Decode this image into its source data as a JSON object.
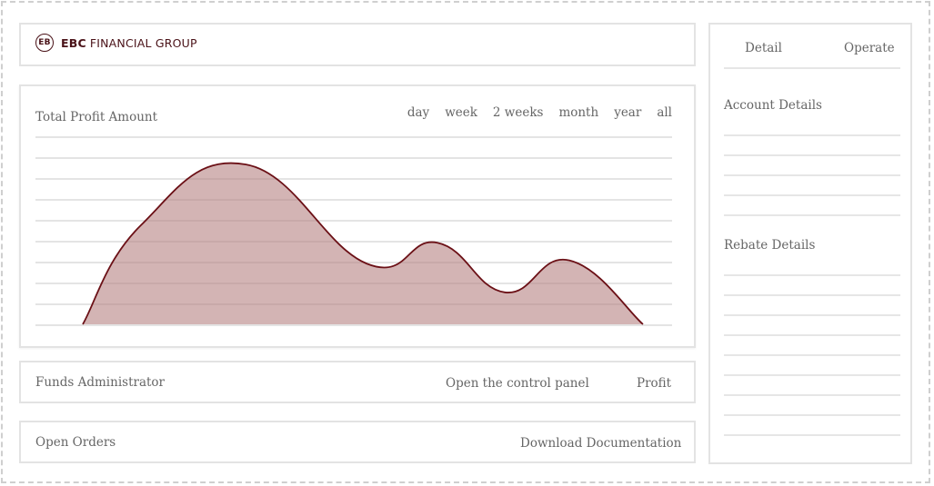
{
  "logo": {
    "brand": "EBC",
    "name": "FINANCIAL GROUP",
    "mark": "EB"
  },
  "chart": {
    "title": "Total Profit Amount",
    "periods": [
      "day",
      "week",
      "2 weeks",
      "month",
      "year",
      "all"
    ]
  },
  "chart_data": {
    "type": "area",
    "title": "Total Profit Amount",
    "series": [
      {
        "values": [
          0,
          0.62,
          1.0,
          0.38,
          0.51,
          0.2,
          0.4,
          0.0
        ]
      }
    ],
    "grid": true,
    "fill_color": "#d1b0b0",
    "line_color": "#6b1016"
  },
  "funds": {
    "label": "Funds Administrator",
    "control": "Open the control panel",
    "profit": "Profit"
  },
  "orders": {
    "label": "Open Orders",
    "download": "Download Documentation"
  },
  "sidebar": {
    "detail": "Detail",
    "operate": "Operate",
    "account": "Account Details",
    "rebate": "Rebate Details"
  },
  "colors": {
    "accent": "#6b1016",
    "fill": "#d1b0b0",
    "rule": "#e3e3e3"
  }
}
